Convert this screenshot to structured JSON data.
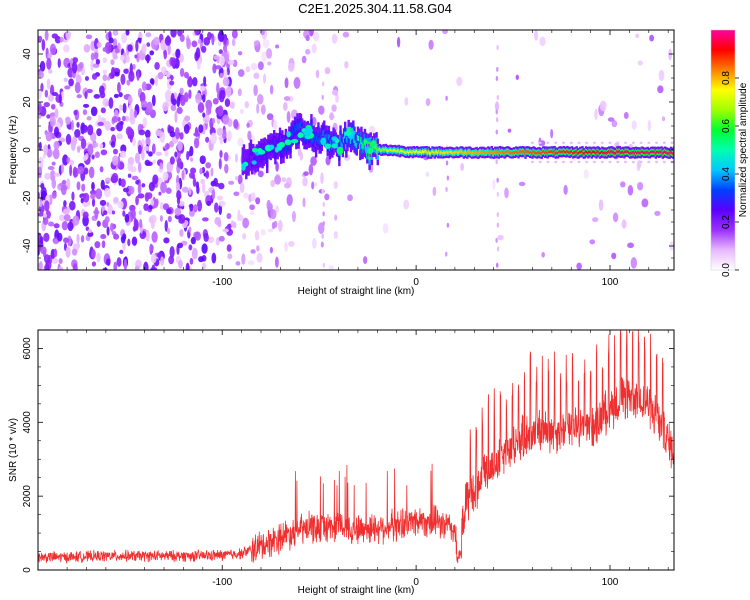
{
  "title": "C2E1.2025.304.11.58.G04",
  "chart_data": [
    {
      "type": "heatmap",
      "title": "C2E1.2025.304.11.58.G04",
      "xlabel": "Height of straight line (km)",
      "ylabel": "Frequency (Hz)",
      "xlim": [
        -195,
        133
      ],
      "ylim": [
        -50,
        50
      ],
      "xticks": [
        -100,
        0,
        100
      ],
      "xtick_labels": [
        "-100",
        "0",
        "100"
      ],
      "yticks": [
        -40,
        -20,
        0,
        20,
        40
      ],
      "ytick_labels": [
        "-40",
        "-20",
        "0",
        "20",
        "40"
      ],
      "colorbar": {
        "label": "Normalized spectral amplitude",
        "range": [
          0,
          1
        ],
        "ticks": [
          0.0,
          0.2,
          0.4,
          0.6,
          0.8
        ],
        "tick_labels": [
          "0.0",
          "0.2",
          "0.4",
          "0.6",
          "0.8"
        ],
        "colors": [
          "#ffffff",
          "#e8b8ff",
          "#9b30ff",
          "#5a00ff",
          "#0040ff",
          "#00c8ff",
          "#00ffb0",
          "#00ff30",
          "#a0ff00",
          "#ffff00",
          "#ff8000",
          "#ff0000",
          "#ff00a0"
        ]
      },
      "ridge": [
        {
          "x": -90,
          "f": -5,
          "amp": 0.22
        },
        {
          "x": -80,
          "f": -2,
          "amp": 0.28
        },
        {
          "x": -70,
          "f": 2,
          "amp": 0.3
        },
        {
          "x": -60,
          "f": 8,
          "amp": 0.35
        },
        {
          "x": -50,
          "f": 5,
          "amp": 0.35
        },
        {
          "x": -40,
          "f": 2,
          "amp": 0.4
        },
        {
          "x": -33,
          "f": 6,
          "amp": 0.45
        },
        {
          "x": -25,
          "f": 0,
          "amp": 0.6
        },
        {
          "x": -15,
          "f": 0,
          "amp": 0.7
        },
        {
          "x": 0,
          "f": -1,
          "amp": 0.75
        },
        {
          "x": 20,
          "f": -1,
          "amp": 0.78
        },
        {
          "x": 50,
          "f": -1,
          "amp": 0.85
        },
        {
          "x": 80,
          "f": -1,
          "amp": 0.9
        },
        {
          "x": 110,
          "f": -1,
          "amp": 0.97
        },
        {
          "x": 133,
          "f": -1,
          "amp": 0.97
        }
      ]
    },
    {
      "type": "line",
      "xlabel": "Height of straight line (km)",
      "ylabel": "SNR (10 * v/v)",
      "xlim": [
        -195,
        133
      ],
      "ylim": [
        0,
        6500
      ],
      "xticks": [
        -100,
        0,
        100
      ],
      "xtick_labels": [
        "-100",
        "0",
        "100"
      ],
      "yticks": [
        0,
        2000,
        4000,
        6000
      ],
      "ytick_labels": [
        "0",
        "2000",
        "4000",
        "6000"
      ],
      "color": "#f03030",
      "series": [
        {
          "name": "SNR",
          "x": [
            -195,
            -180,
            -160,
            -140,
            -120,
            -100,
            -90,
            -80,
            -70,
            -60,
            -50,
            -40,
            -30,
            -20,
            -10,
            0,
            10,
            20,
            22,
            25,
            30,
            40,
            50,
            60,
            70,
            80,
            90,
            100,
            110,
            120,
            133
          ],
          "y": [
            350,
            350,
            380,
            380,
            380,
            400,
            450,
            650,
            900,
            1100,
            1150,
            1200,
            1100,
            1150,
            1200,
            1350,
            1300,
            1100,
            200,
            1700,
            2200,
            2800,
            3300,
            3800,
            3700,
            3900,
            3800,
            4400,
            4800,
            4500,
            3200
          ]
        }
      ]
    }
  ]
}
